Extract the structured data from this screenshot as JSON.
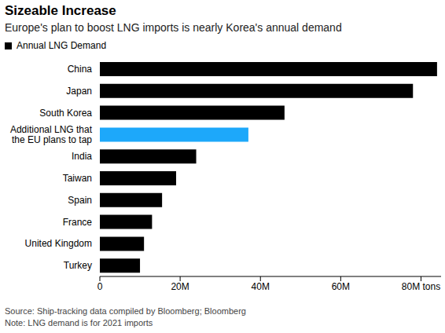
{
  "chart_data": {
    "type": "bar",
    "orientation": "horizontal",
    "title": "Sizeable Increase",
    "subtitle": "Europe's plan to boost LNG imports is nearly Korea's annual demand",
    "categories": [
      "China",
      "Japan",
      "South Korea",
      "Additional LNG that the EU plans to tap",
      "India",
      "Taiwan",
      "Spain",
      "France",
      "United Kingdom",
      "Turkey"
    ],
    "series": [
      {
        "name": "Annual LNG Demand",
        "color": "#000000",
        "colors": [
          "#000000",
          "#000000",
          "#000000",
          "#1DA8FA",
          "#000000",
          "#000000",
          "#000000",
          "#000000",
          "#000000",
          "#000000"
        ],
        "values": [
          84,
          78,
          46,
          37,
          24,
          19,
          15.5,
          13,
          11,
          10
        ]
      }
    ],
    "xlim": [
      0,
      85
    ],
    "xticks": [
      0,
      {
        "value": 20,
        "label": "20M"
      },
      {
        "value": 40,
        "label": "40M"
      },
      {
        "value": 60,
        "label": "60M"
      },
      {
        "value": 80,
        "label": "80M tons"
      }
    ],
    "grid": false,
    "source": "Source: Ship-tracking data compiled by Bloomberg; Bloomberg",
    "note": "Note: LNG demand is for 2021 imports"
  }
}
